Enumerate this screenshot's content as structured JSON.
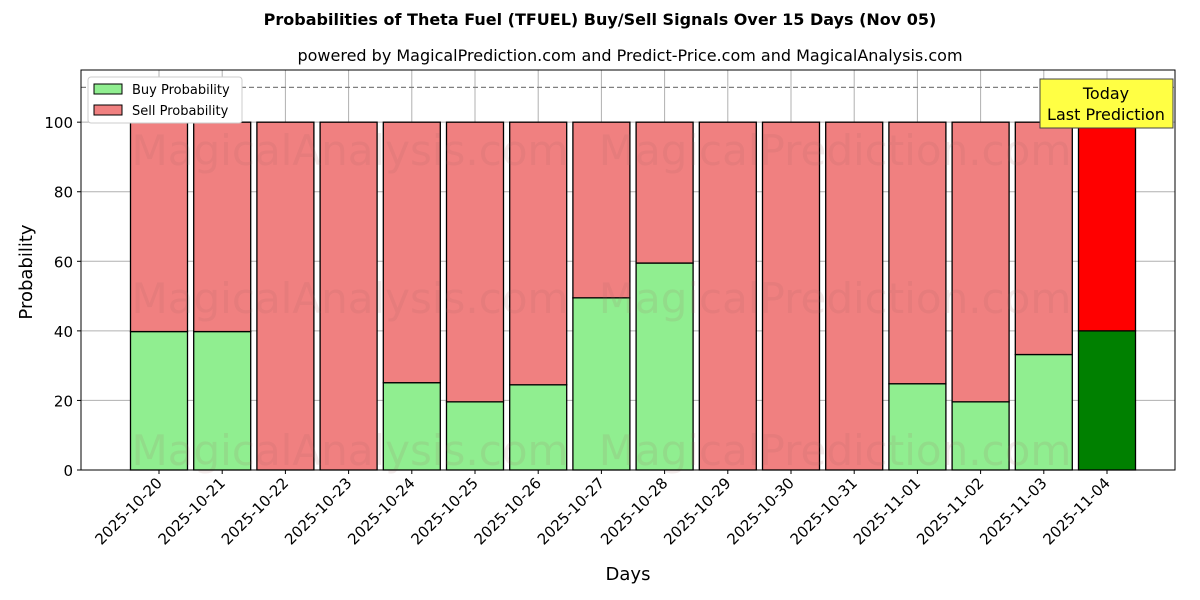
{
  "chart_data": {
    "type": "bar",
    "stacked": true,
    "title": "Probabilities of Theta Fuel (TFUEL) Buy/Sell Signals Over 15 Days (Nov 05)",
    "subtitle": "powered by MagicalPrediction.com and Predict-Price.com and MagicalAnalysis.com",
    "xlabel": "Days",
    "ylabel": "Probability",
    "ylim": [
      0,
      115
    ],
    "yticks": [
      0,
      20,
      40,
      60,
      80,
      100
    ],
    "grid": true,
    "legend_position": "upper left",
    "reference_line": {
      "y": 110,
      "style": "dashed",
      "color": "#808080"
    },
    "categories": [
      "2025-10-20",
      "2025-10-21",
      "2025-10-22",
      "2025-10-23",
      "2025-10-24",
      "2025-10-25",
      "2025-10-26",
      "2025-10-27",
      "2025-10-28",
      "2025-10-29",
      "2025-10-30",
      "2025-10-31",
      "2025-11-01",
      "2025-11-02",
      "2025-11-03",
      "2025-11-04"
    ],
    "series": [
      {
        "name": "Buy Probability",
        "color": "#90ee90",
        "values": [
          39.8,
          39.8,
          0,
          0,
          25.1,
          19.6,
          24.5,
          49.5,
          59.5,
          0,
          0,
          0,
          24.8,
          19.6,
          33.2,
          40
        ]
      },
      {
        "name": "Sell Probability",
        "color": "#f08080",
        "values": [
          60.2,
          60.2,
          100,
          100,
          74.9,
          80.4,
          75.5,
          50.5,
          40.5,
          100,
          100,
          100,
          75.2,
          80.4,
          66.8,
          60
        ]
      }
    ],
    "highlight": {
      "index": 15,
      "buy_color": "#008000",
      "sell_color": "#ff0000"
    },
    "annotation": {
      "text_line1": "Today",
      "text_line2": "Last Prediction",
      "bg": "#ffff44"
    },
    "watermarks": [
      "MagicalAnalysis.com",
      "MagicalPrediction.com"
    ]
  }
}
